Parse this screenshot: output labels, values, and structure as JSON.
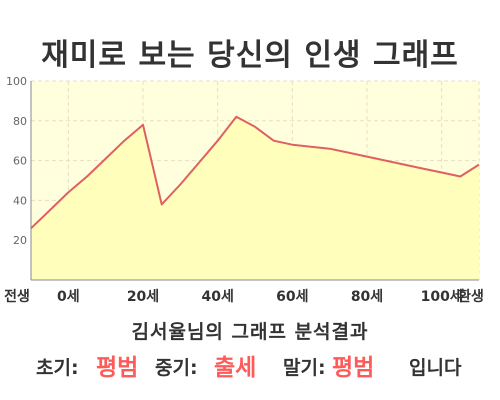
{
  "title": "재미로 보는 당신의 인생 그래프",
  "subtitle": "김서율님의 그래프 분석결과",
  "result": {
    "early_label": "초기:",
    "early_value": "평범",
    "mid_label": "중기:",
    "mid_value": "출세",
    "late_label": "말기:",
    "late_value": "평범",
    "ending": "입니다"
  },
  "colors": {
    "plot_background": "#ffffdd",
    "area_fill": "#ffffbb",
    "line": "#e06060",
    "accent_text": "#ff5a5a",
    "axis": "#888888",
    "grid": "#e4e0c0"
  },
  "chart_data": {
    "type": "area",
    "x_categories": [
      "전생",
      "0세",
      "20세",
      "40세",
      "60세",
      "80세",
      "100세",
      "환생"
    ],
    "x": [
      -10,
      -5,
      0,
      5,
      10,
      15,
      20,
      25,
      30,
      35,
      40,
      45,
      50,
      55,
      60,
      65,
      70,
      75,
      80,
      85,
      90,
      95,
      100,
      105,
      110
    ],
    "values": [
      26,
      35,
      44,
      52,
      61,
      70,
      78,
      38,
      48,
      59,
      70,
      82,
      77,
      70,
      68,
      67,
      66,
      64,
      62,
      60,
      58,
      56,
      54,
      52,
      58
    ],
    "ylim": [
      0,
      100
    ],
    "yticks": [
      20,
      40,
      60,
      80,
      100
    ],
    "grid": true,
    "title": "",
    "xlabel": "",
    "ylabel": ""
  }
}
